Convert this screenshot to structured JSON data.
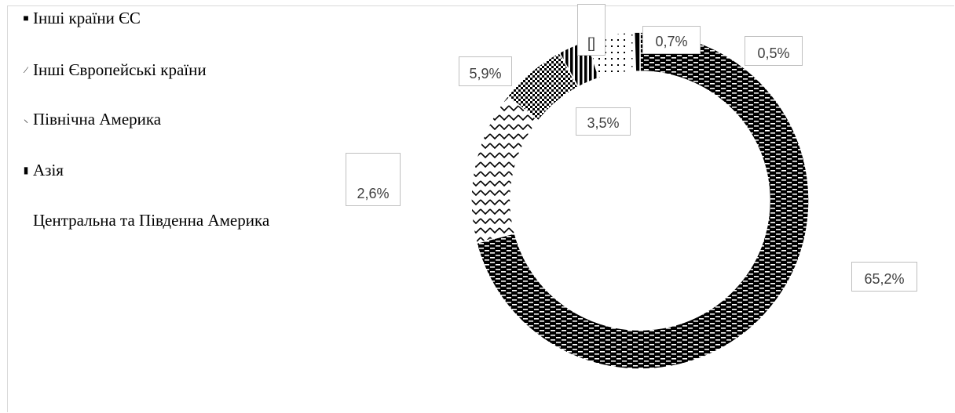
{
  "chart_data": {
    "type": "donut",
    "legend": [
      {
        "label": "Інші країни ЄС",
        "marker": "■"
      },
      {
        "label": "Інші Європейські країни",
        "marker": "⁄"
      },
      {
        "label": "Північна Америка",
        "marker": "⸜"
      },
      {
        "label": "Азія",
        "marker": "▮"
      },
      {
        "label": "Центральна та Південна Америка",
        "marker": ""
      }
    ],
    "slices": [
      {
        "value": 65.2,
        "pattern": "bricks"
      },
      {
        "value": 13.5,
        "pattern": "zigzag"
      },
      {
        "value": 5.9,
        "pattern": "checks"
      },
      {
        "value": 2.6,
        "pattern": "vstripes"
      },
      {
        "value": 3.5,
        "pattern": "dots"
      },
      {
        "value": 0.7,
        "pattern": "light"
      },
      {
        "value": 0.5,
        "pattern": "solid"
      }
    ],
    "data_labels": [
      "65,2%",
      "5,9%",
      "2,6%",
      "3,5%",
      "0,7%",
      "0,5%",
      "[]"
    ]
  }
}
